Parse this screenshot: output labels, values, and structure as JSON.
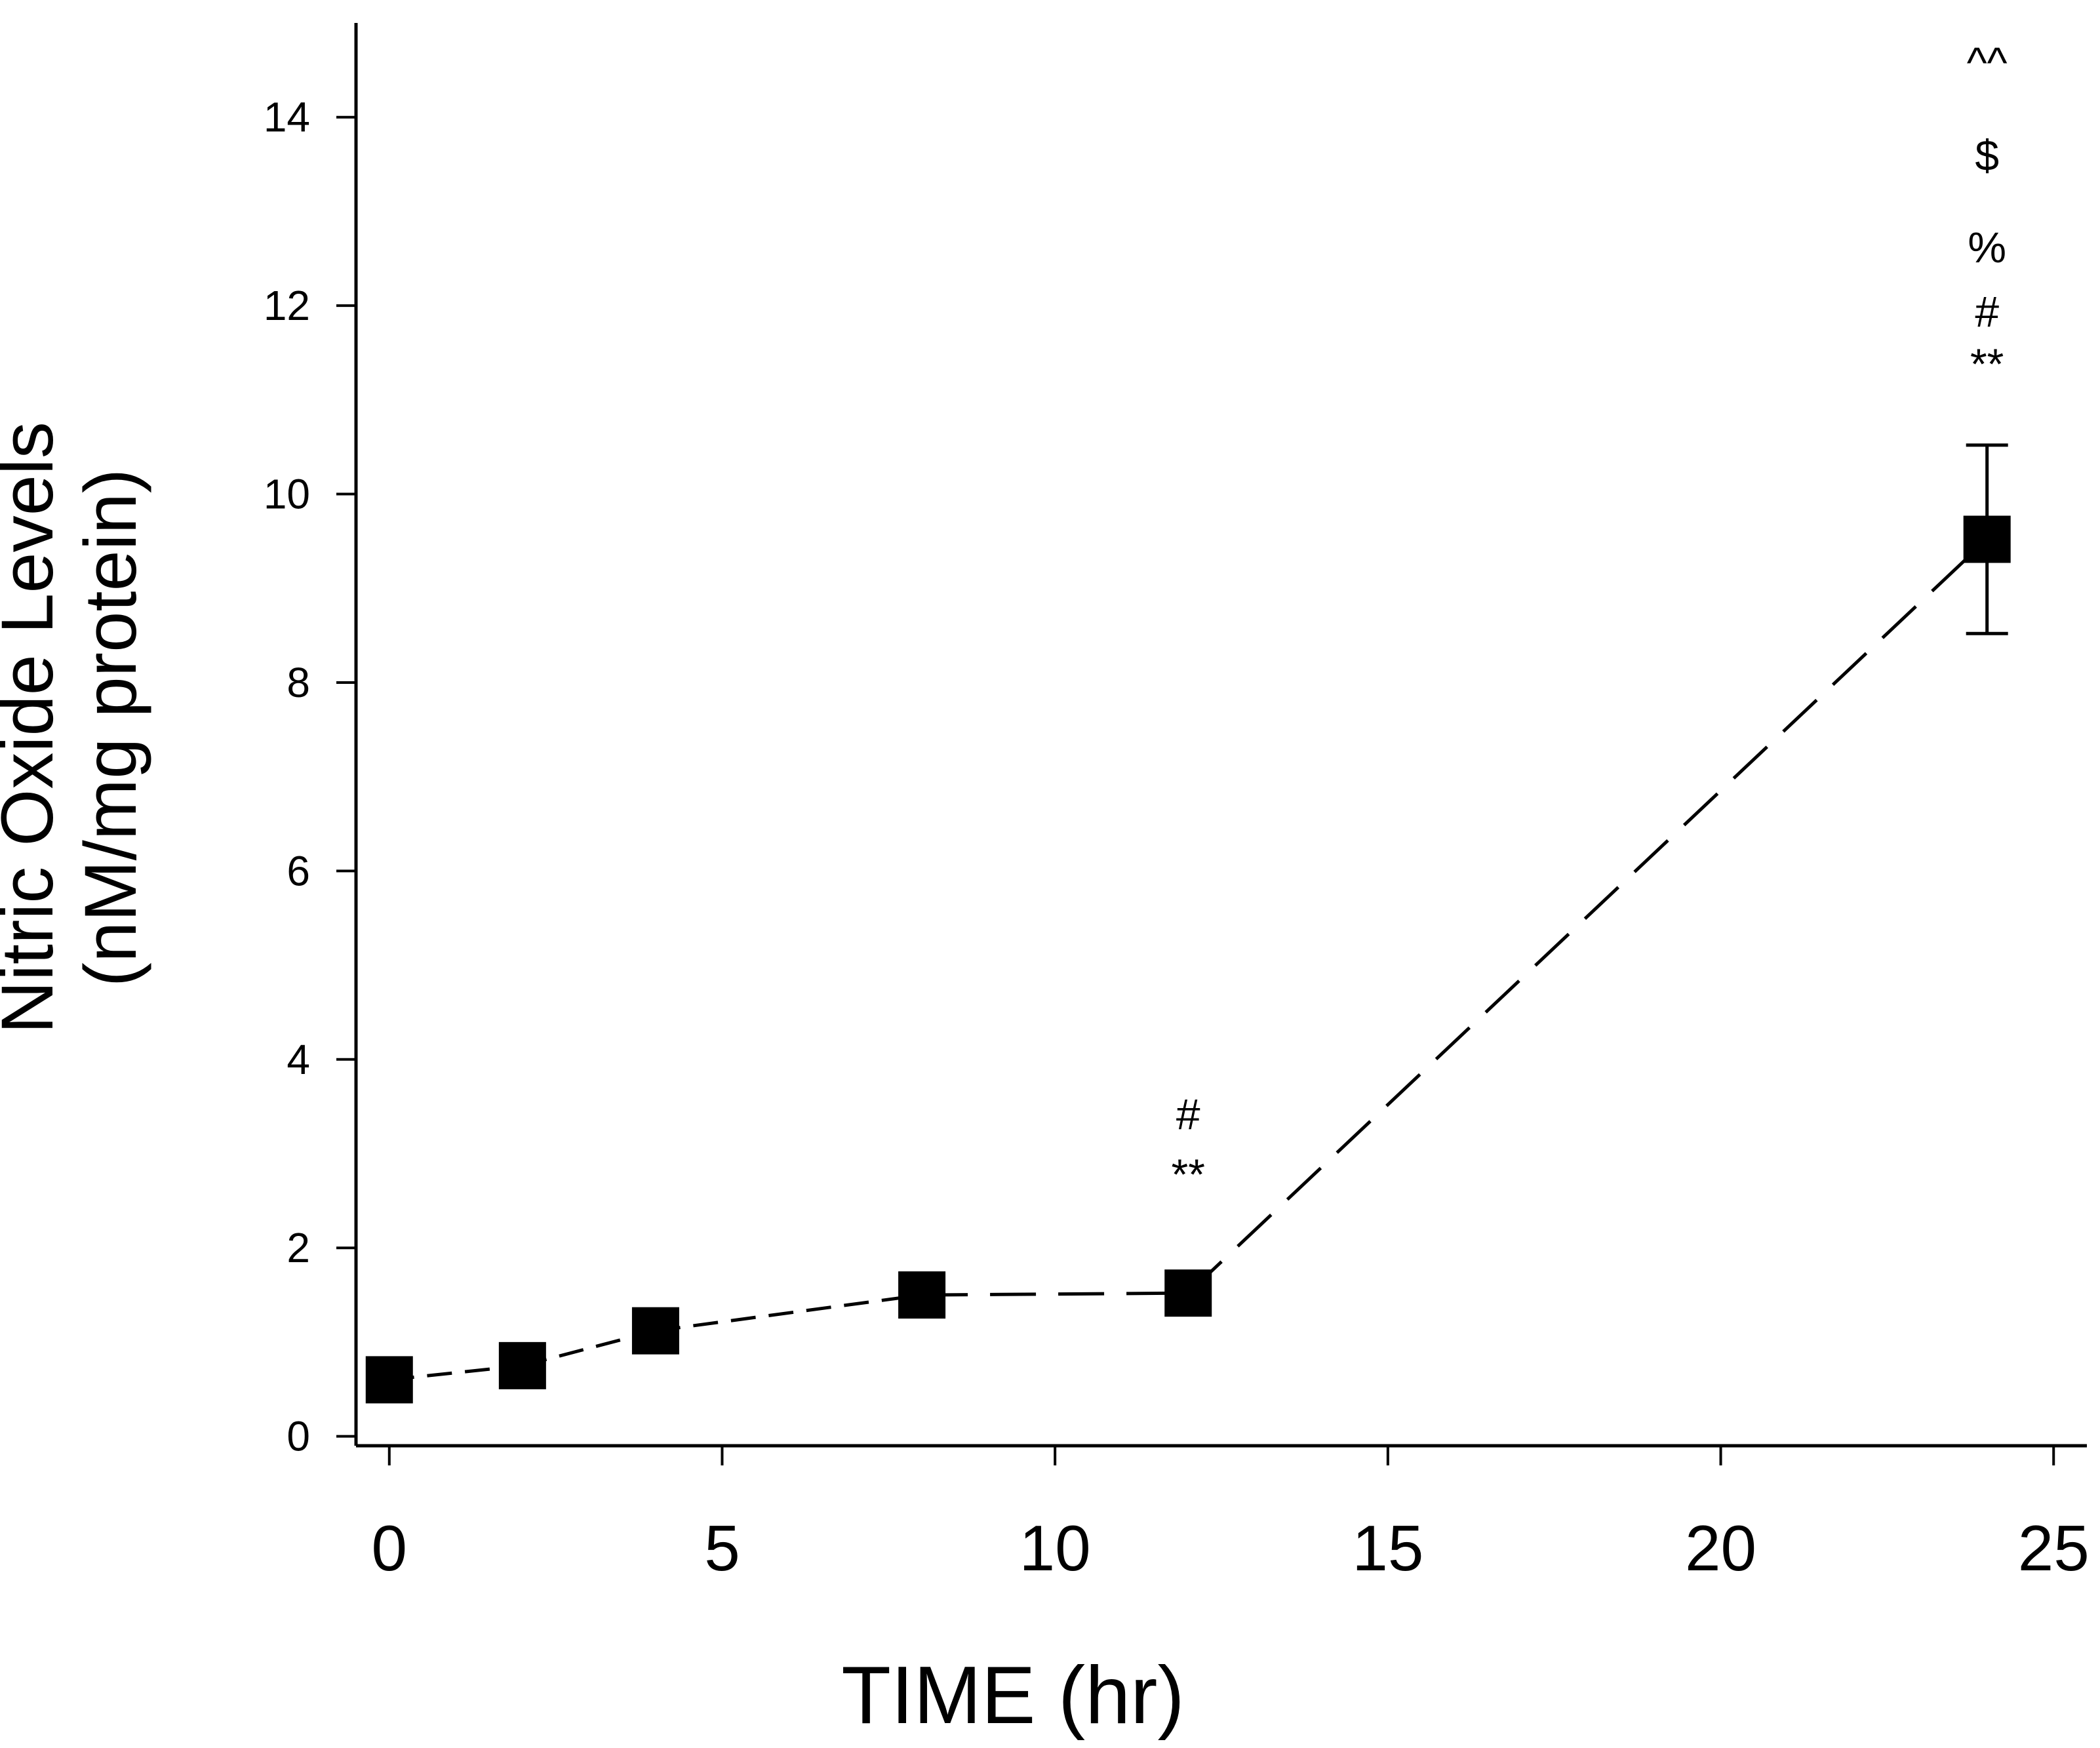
{
  "chart_data": {
    "type": "line",
    "title": "",
    "xlabel": "TIME (hr)",
    "ylabel_lines": [
      "Nitric Oxide Levels",
      "(nM/mg protein)"
    ],
    "xlim": [
      -0.5,
      25.5
    ],
    "ylim": [
      -0.1,
      15
    ],
    "xticks": [
      0,
      5,
      10,
      15,
      20,
      25
    ],
    "yticks": [
      0,
      2,
      4,
      6,
      8,
      10,
      12,
      14
    ],
    "grid": false,
    "series": [
      {
        "name": "Nitric Oxide",
        "marker": "square",
        "line_style": "dashed",
        "color": "#000000",
        "x": [
          0,
          2,
          4,
          8,
          12,
          24
        ],
        "values": [
          0.6,
          0.75,
          1.12,
          1.5,
          1.52,
          9.52
        ],
        "error": [
          null,
          null,
          null,
          null,
          null,
          1.0
        ]
      }
    ],
    "annotations": [
      {
        "x": 12,
        "lines": [
          "#",
          "**"
        ]
      },
      {
        "x": 24,
        "lines": [
          "^^",
          "$",
          "%",
          "#",
          "**"
        ]
      }
    ]
  }
}
